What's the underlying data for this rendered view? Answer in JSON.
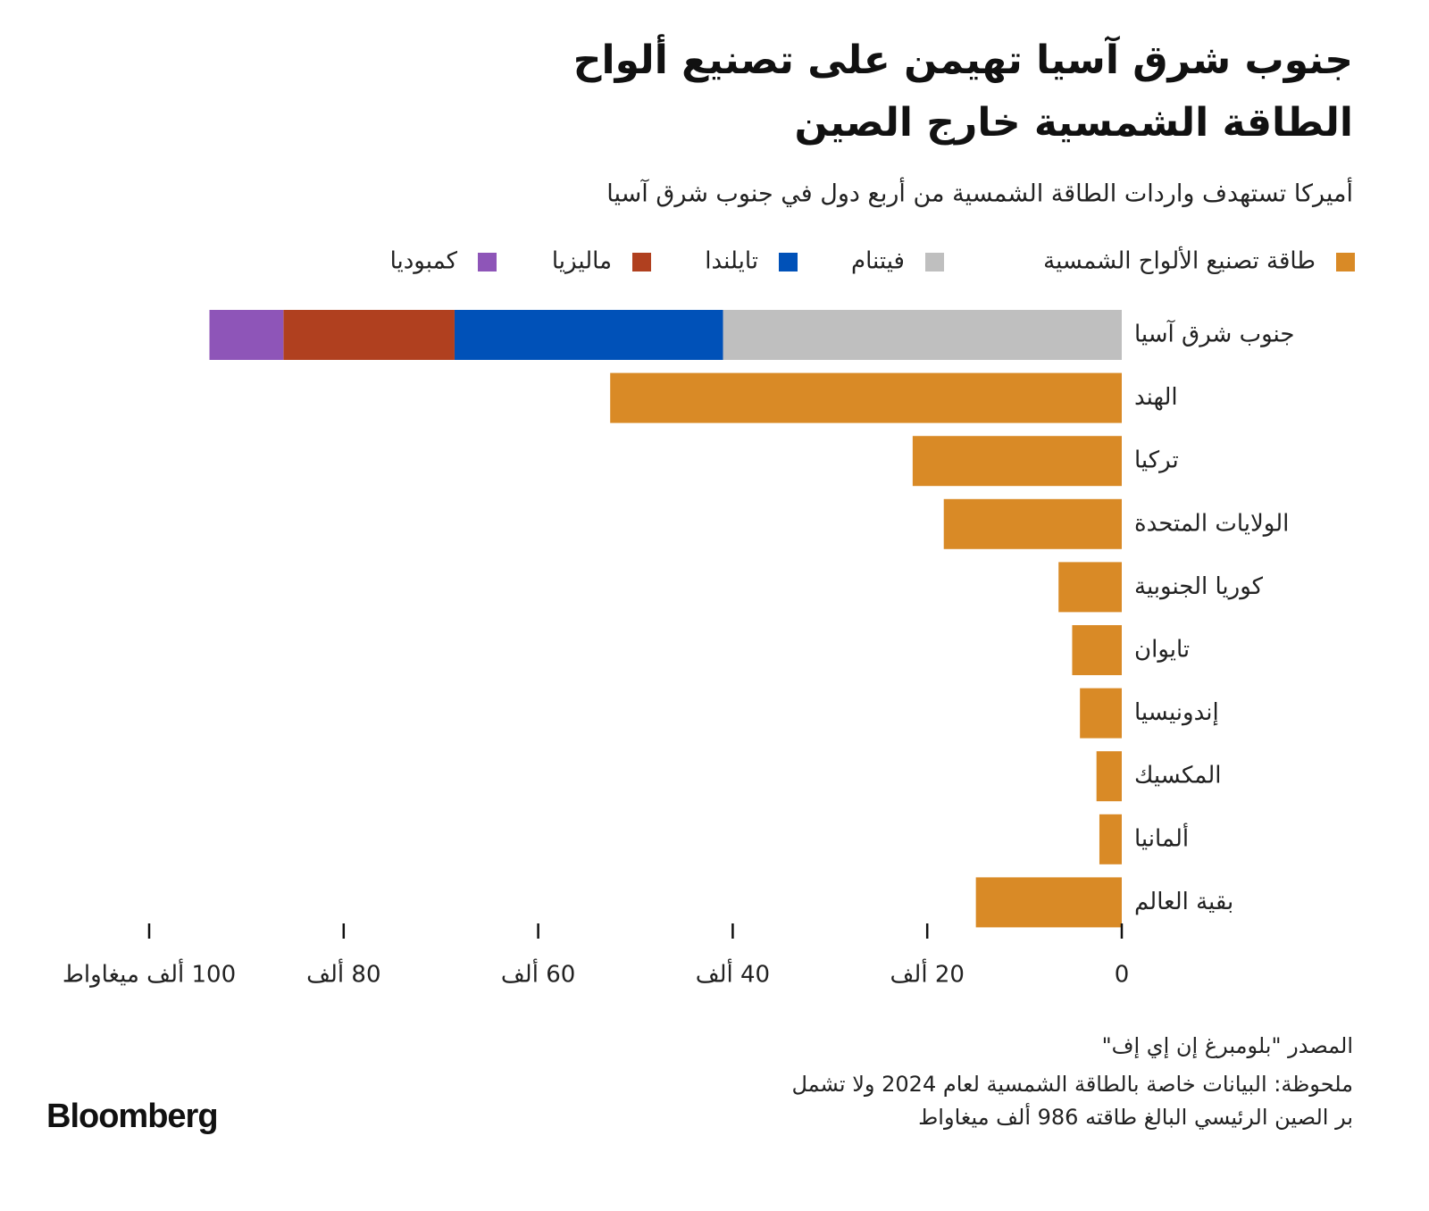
{
  "chart_data": {
    "type": "bar",
    "orientation": "horizontal",
    "stacked": true,
    "title": [
      "جنوب شرق آسيا تهيمن على تصنيع ألواح",
      "الطاقة الشمسية خارج الصين"
    ],
    "subtitle": "أميركا  تستهدف واردات الطاقة الشمسية من أربع دول في جنوب شرق آسيا",
    "categories": [
      "جنوب شرق آسيا",
      "الهند",
      "تركيا",
      "الولايات المتحدة",
      "كوريا الجنوبية",
      "تايوان",
      "إندونيسيا",
      "المكسيك",
      "ألمانيا",
      "بقية العالم"
    ],
    "series": [
      {
        "name": "طاقة تصنيع الألواح الشمسية",
        "color": "#d98a26",
        "values": [
          null,
          52.6,
          21.5,
          18.3,
          6.5,
          5.1,
          4.3,
          2.6,
          2.3,
          15.0
        ]
      },
      {
        "name": "فيتنام",
        "color": "#bfbfbf",
        "values": [
          41.0,
          null,
          null,
          null,
          null,
          null,
          null,
          null,
          null,
          null
        ]
      },
      {
        "name": "تايلندا",
        "color": "#0051b8",
        "values": [
          27.6,
          null,
          null,
          null,
          null,
          null,
          null,
          null,
          null,
          null
        ]
      },
      {
        "name": "ماليزيا",
        "color": "#b0401f",
        "values": [
          17.6,
          null,
          null,
          null,
          null,
          null,
          null,
          null,
          null,
          null
        ]
      },
      {
        "name": "كمبوديا",
        "color": "#8e55b8",
        "values": [
          7.6,
          null,
          null,
          null,
          null,
          null,
          null,
          null,
          null,
          null
        ]
      }
    ],
    "xlim": [
      0,
      100
    ],
    "x_reversed": true,
    "xticks": [
      0,
      {
        "value": 20,
        "label": "20 ألف"
      },
      {
        "value": 40,
        "label": "40 ألف"
      },
      {
        "value": 60,
        "label": "60 ألف"
      },
      {
        "value": 80,
        "label": "80 ألف"
      },
      {
        "value": 100,
        "label": "100 ألف ميغاواط"
      }
    ],
    "source": "المصدر \"بلومبرغ إن إي إف\"",
    "notes": [
      "ملحوظة: البيانات خاصة بالطاقة الشمسية لعام 2024 ولا تشمل",
      "بر الصين الرئيسي البالغ طاقته 986 ألف ميغاواط"
    ],
    "logo": "Bloomberg"
  }
}
